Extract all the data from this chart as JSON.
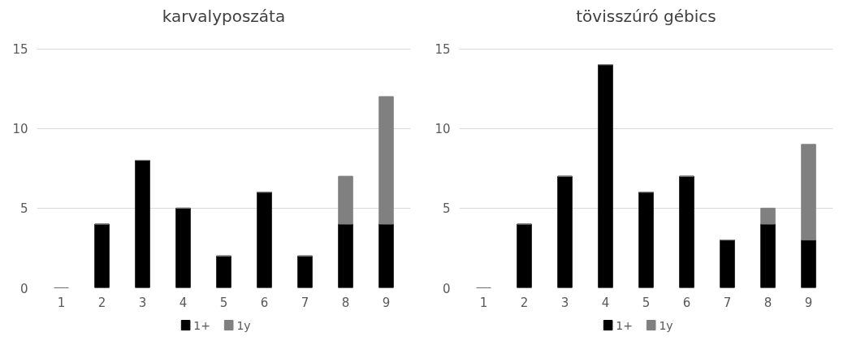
{
  "chart_data": [
    {
      "type": "bar",
      "title": "karvalyposzáta",
      "categories": [
        "1",
        "2",
        "3",
        "4",
        "5",
        "6",
        "7",
        "8",
        "9"
      ],
      "stacked": true,
      "series": [
        {
          "name": "1+",
          "color": "#000000",
          "values": [
            0,
            4,
            8,
            5,
            2,
            6,
            2,
            4,
            4
          ]
        },
        {
          "name": "1y",
          "color": "#808080",
          "values": [
            0,
            0,
            0,
            0,
            0,
            0,
            0,
            3,
            8
          ]
        }
      ],
      "ylim": [
        0,
        15
      ],
      "yticks": [
        0,
        5,
        10,
        15
      ],
      "grid": "y",
      "legend": "bottom"
    },
    {
      "type": "bar",
      "title": "tövisszúró gébics",
      "categories": [
        "1",
        "2",
        "3",
        "4",
        "5",
        "6",
        "7",
        "8",
        "9"
      ],
      "stacked": true,
      "series": [
        {
          "name": "1+",
          "color": "#000000",
          "values": [
            0,
            4,
            7,
            14,
            6,
            7,
            3,
            4,
            3
          ]
        },
        {
          "name": "1y",
          "color": "#808080",
          "values": [
            0,
            0,
            0,
            0,
            0,
            0,
            0,
            1,
            6
          ]
        }
      ],
      "ylim": [
        0,
        15
      ],
      "yticks": [
        0,
        5,
        10,
        15
      ],
      "grid": "y",
      "legend": "bottom"
    }
  ]
}
